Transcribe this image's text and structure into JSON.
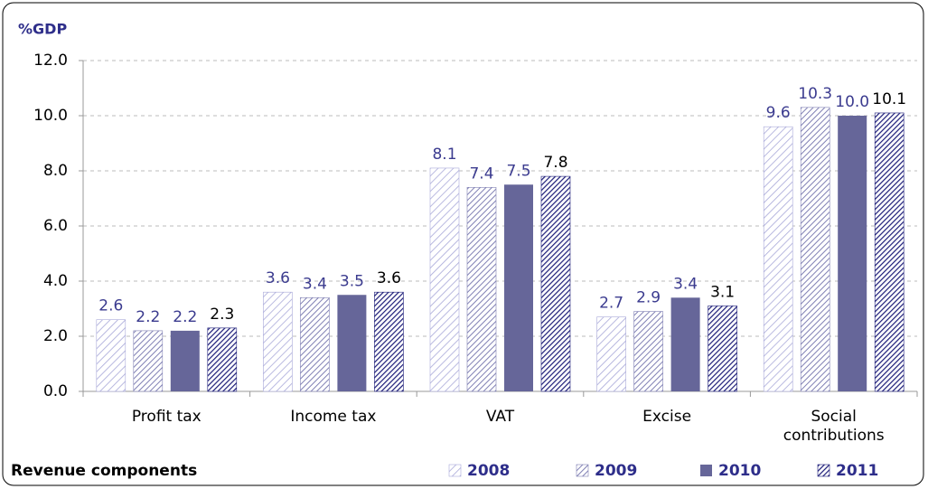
{
  "chart_data": {
    "type": "bar",
    "y_label": "%GDP",
    "x_label": "Revenue components",
    "categories": [
      "Profit tax",
      "Income tax",
      "VAT",
      "Excise",
      "Social contributions"
    ],
    "series": [
      {
        "name": "2008",
        "color": "#a9a9d9",
        "pattern": "sparse-hatch",
        "label_color": "#3b3b8f",
        "values": [
          2.6,
          3.6,
          8.1,
          2.7,
          9.6
        ]
      },
      {
        "name": "2009",
        "color": "#8080b4",
        "pattern": "hatch",
        "label_color": "#3b3b8f",
        "values": [
          2.2,
          3.4,
          7.4,
          2.9,
          10.3
        ]
      },
      {
        "name": "2010",
        "color": "#666699",
        "pattern": "solid",
        "label_color": "#3b3b8f",
        "values": [
          2.2,
          3.5,
          7.5,
          3.4,
          10.0
        ],
        "value_labels": [
          "2.2",
          "3.5",
          "7.5",
          "3.4",
          "10.0"
        ]
      },
      {
        "name": "2011",
        "color": "#1c1c78",
        "pattern": "dense-hatch",
        "label_color": "#000000",
        "values": [
          2.3,
          3.6,
          7.8,
          3.1,
          10.1
        ]
      }
    ],
    "ylim": [
      0,
      12
    ],
    "yticks": [
      {
        "value": 0,
        "label": "0.0"
      },
      {
        "value": 2,
        "label": "2.0"
      },
      {
        "value": 4,
        "label": "4.0"
      },
      {
        "value": 6,
        "label": "6.0"
      },
      {
        "value": 8,
        "label": "8.0"
      },
      {
        "value": 10,
        "label": "10.0"
      },
      {
        "value": 12,
        "label": "12.0"
      }
    ],
    "grid": true,
    "legend": "bottom-right"
  }
}
